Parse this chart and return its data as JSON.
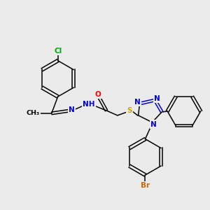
{
  "bg_color": "#ebebeb",
  "bond_color": "#000000",
  "atom_colors": {
    "N": "#0000dd",
    "O": "#ff0000",
    "S": "#ccaa00",
    "Cl": "#00aa00",
    "Br": "#cc6600",
    "C": "#000000"
  },
  "font_size": 7.5
}
